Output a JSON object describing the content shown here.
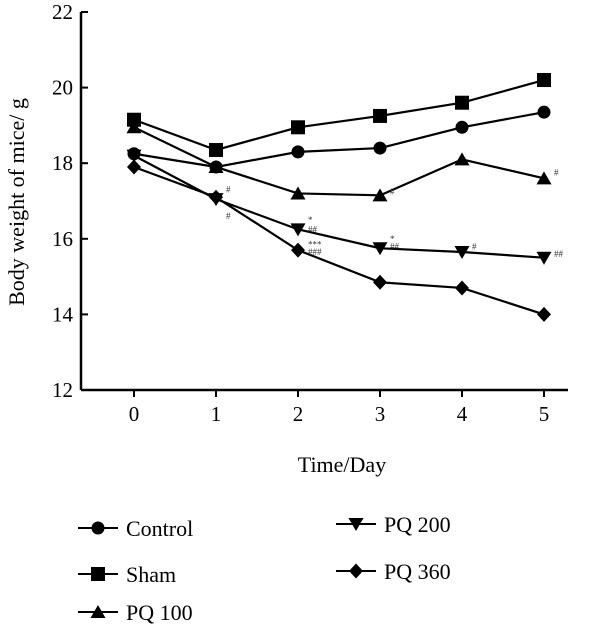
{
  "chart_data": {
    "type": "line",
    "title": "",
    "xlabel": "Time/Day",
    "ylabel": "Body weight of mice/ g",
    "x": [
      0,
      1,
      2,
      3,
      4,
      5
    ],
    "xlim": [
      -0.3,
      5.5
    ],
    "ylim": [
      12,
      22
    ],
    "yticks": [
      12,
      14,
      16,
      18,
      20,
      22
    ],
    "grid": false,
    "legend_position": "bottom",
    "series": [
      {
        "name": "Control",
        "marker": "circle",
        "values": [
          18.25,
          17.9,
          18.3,
          18.4,
          18.95,
          19.35
        ]
      },
      {
        "name": "Sham",
        "marker": "square",
        "values": [
          19.15,
          18.35,
          18.95,
          19.25,
          19.6,
          20.2
        ]
      },
      {
        "name": "PQ 100",
        "marker": "triangle-up",
        "values": [
          18.95,
          17.9,
          17.2,
          17.15,
          18.1,
          17.6
        ]
      },
      {
        "name": "PQ 200",
        "marker": "triangle-down",
        "values": [
          18.2,
          17.05,
          16.25,
          15.75,
          15.65,
          15.5
        ]
      },
      {
        "name": "PQ 360",
        "marker": "diamond",
        "values": [
          17.9,
          17.1,
          15.7,
          14.85,
          14.7,
          14.0
        ]
      }
    ],
    "annotations": [
      {
        "text": "#",
        "x": 1,
        "y": 17.3
      },
      {
        "text": "#",
        "x": 1,
        "y": 16.6
      },
      {
        "text": "*",
        "x": 2,
        "y": 16.5
      },
      {
        "text": "##",
        "x": 2,
        "y": 16.25
      },
      {
        "text": "***",
        "x": 2,
        "y": 15.85
      },
      {
        "text": "###",
        "x": 2,
        "y": 15.65
      },
      {
        "text": "#",
        "x": 3,
        "y": 17.25
      },
      {
        "text": "*",
        "x": 3,
        "y": 16.0
      },
      {
        "text": "##",
        "x": 3,
        "y": 15.8
      },
      {
        "text": "#",
        "x": 4,
        "y": 15.8
      },
      {
        "text": "##",
        "x": 5,
        "y": 15.6
      },
      {
        "text": "#",
        "x": 5,
        "y": 17.75
      }
    ]
  }
}
